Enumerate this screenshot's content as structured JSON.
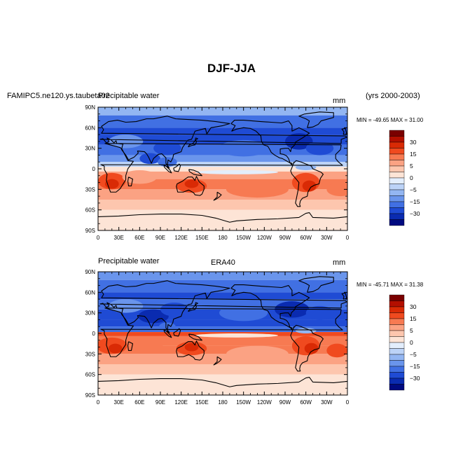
{
  "main_title": "DJF-JJA",
  "header_left": "FAMIPC5.ne120.ys.taubeta02",
  "years": "(yrs 2000-2003)",
  "panels": [
    {
      "left_label": "Precipitable water",
      "center_label": "",
      "units": "mm",
      "stats": "MIN = -49.65 MAX =  31.00"
    },
    {
      "left_label": "Precipitable water",
      "center_label": "ERA40",
      "units": "mm",
      "stats": "MIN = -45.71 MAX =  31.38"
    }
  ],
  "lat_labels": [
    "90N",
    "60N",
    "30N",
    "0",
    "30S",
    "60S",
    "90S"
  ],
  "lon_labels": [
    "0",
    "30E",
    "60E",
    "90E",
    "120E",
    "150E",
    "180",
    "150W",
    "120W",
    "90W",
    "60W",
    "30W",
    "0"
  ],
  "colorbar": {
    "labels": [
      "30",
      "15",
      "5",
      "0",
      "-5",
      "-15",
      "-30"
    ],
    "colors": [
      "#7a0000",
      "#b30f00",
      "#d92a05",
      "#f04a1f",
      "#f77a52",
      "#fba283",
      "#fdc6ae",
      "#fde4d6",
      "#e3eefc",
      "#bcd3f7",
      "#93b6f2",
      "#6a95ec",
      "#4170e3",
      "#1f4bd4",
      "#0a2bb0",
      "#000a80"
    ]
  }
}
